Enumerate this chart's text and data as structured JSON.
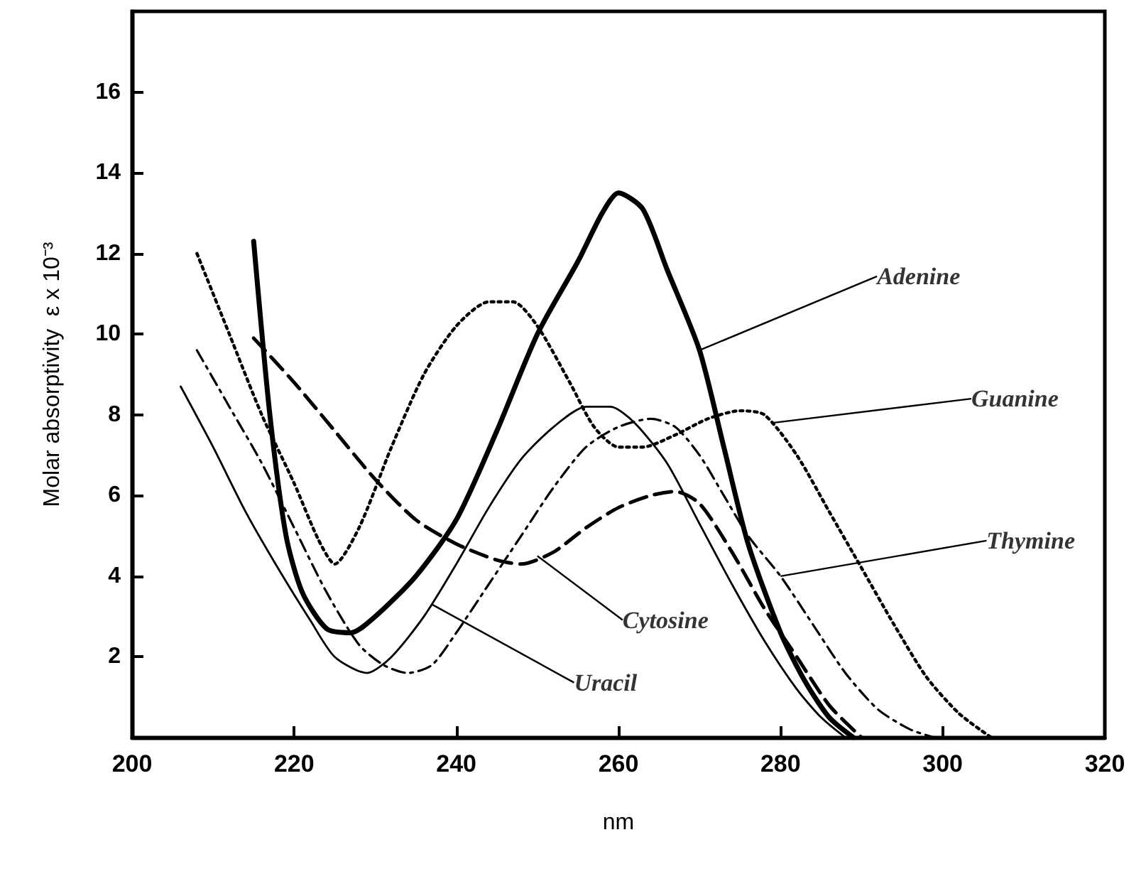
{
  "chart_data": {
    "type": "line",
    "xlabel": "nm",
    "ylabel": "Molar absorptivity  ε x 10⁻³",
    "xlim": [
      200,
      320
    ],
    "xticks": [
      200,
      220,
      240,
      260,
      280,
      300,
      320
    ],
    "ylim": [
      0,
      18
    ],
    "yticks": [
      2,
      4,
      6,
      8,
      10,
      12,
      14,
      16
    ],
    "marker": "none",
    "series": [
      {
        "color": "#000000",
        "line_style": "solid",
        "x": [
          215,
          217,
          219,
          221,
          224,
          227,
          230,
          235,
          240,
          245,
          250,
          255,
          258,
          260,
          263,
          266,
          270,
          273,
          276,
          280,
          283,
          286,
          289
        ],
        "values": [
          12.3,
          8,
          5,
          3.6,
          2.7,
          2.6,
          3.0,
          4.0,
          5.4,
          7.6,
          10,
          11.8,
          13,
          13.5,
          13.1,
          11.6,
          9.6,
          7.2,
          4.8,
          2.6,
          1.4,
          0.5,
          0
        ]
      },
      {
        "color": "#000000",
        "line_style": "dotted",
        "x": [
          208,
          212,
          216,
          220,
          223,
          225,
          228,
          232,
          236,
          240,
          244,
          247,
          250,
          254,
          257,
          260,
          263,
          267,
          271,
          275,
          278,
          282,
          286,
          290,
          294,
          298,
          302,
          306
        ],
        "values": [
          12,
          10,
          8,
          6.3,
          4.9,
          4.3,
          5.2,
          7.2,
          9,
          10.2,
          10.8,
          10.8,
          10.2,
          8.8,
          7.7,
          7.2,
          7.2,
          7.5,
          7.9,
          8.1,
          8,
          7,
          5.6,
          4.2,
          2.8,
          1.5,
          0.6,
          0
        ]
      },
      {
        "color": "#000000",
        "line_style": "dashed",
        "x": [
          215,
          220,
          225,
          230,
          235,
          240,
          245,
          248,
          252,
          256,
          260,
          264,
          267,
          270,
          274,
          278,
          282,
          286,
          290
        ],
        "values": [
          9.9,
          8.8,
          7.6,
          6.4,
          5.4,
          4.8,
          4.4,
          4.3,
          4.6,
          5.2,
          5.7,
          6.0,
          6.1,
          5.8,
          4.6,
          3.2,
          2.0,
          0.8,
          0
        ]
      },
      {
        "color": "#000000",
        "line_style": "dashdot",
        "x": [
          208,
          212,
          216,
          220,
          224,
          228,
          231,
          234,
          237,
          240,
          244,
          248,
          252,
          256,
          260,
          264,
          267,
          270,
          273,
          276,
          280,
          284,
          288,
          292,
          296,
          299
        ],
        "values": [
          9.6,
          8.2,
          6.8,
          5.2,
          3.6,
          2.3,
          1.8,
          1.6,
          1.8,
          2.6,
          3.8,
          5.0,
          6.2,
          7.2,
          7.7,
          7.9,
          7.7,
          7.0,
          6.0,
          5.0,
          4.0,
          2.8,
          1.6,
          0.7,
          0.2,
          0
        ]
      },
      {
        "color": "#000000",
        "line_style": "solid",
        "x": [
          206,
          210,
          214,
          218,
          222,
          225,
          229,
          232,
          236,
          240,
          244,
          248,
          252,
          256,
          259,
          262,
          266,
          270,
          274,
          278,
          282,
          285,
          288
        ],
        "values": [
          8.7,
          7.2,
          5.6,
          4.2,
          2.9,
          2.0,
          1.6,
          2.0,
          3.0,
          4.3,
          5.7,
          6.9,
          7.7,
          8.2,
          8.2,
          7.8,
          6.8,
          5.3,
          3.8,
          2.4,
          1.2,
          0.5,
          0
        ]
      }
    ],
    "annotations": [
      {
        "text": "Adenine",
        "x": 270,
        "y": 9.6
      },
      {
        "text": "Guanine",
        "x": 279,
        "y": 7.8
      },
      {
        "text": "Cytosine",
        "x": 250,
        "y": 4.5
      },
      {
        "text": "Thymine",
        "x": 280,
        "y": 4.0
      },
      {
        "text": "Uracil",
        "x": 237,
        "y": 3.3
      }
    ]
  }
}
